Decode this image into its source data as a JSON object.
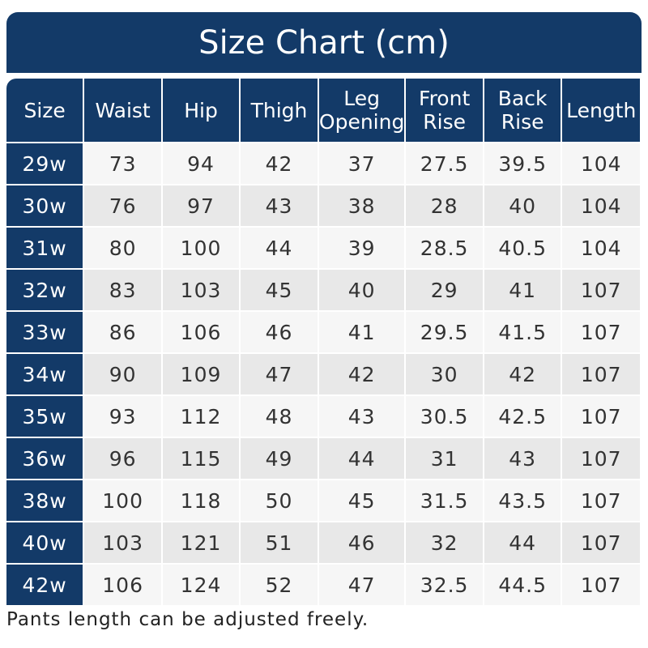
{
  "title": "Size Chart (cm)",
  "colors": {
    "header": "#133a68",
    "row_light": "#f6f6f6",
    "row_dark": "#e8e8e8"
  },
  "headers": [
    "Size",
    "Waist",
    "Hip",
    "Thigh",
    "Leg Opening",
    "Front Rise",
    "Back Rise",
    "Length"
  ],
  "rows": [
    [
      "29w",
      "73",
      "94",
      "42",
      "37",
      "27.5",
      "39.5",
      "104"
    ],
    [
      "30w",
      "76",
      "97",
      "43",
      "38",
      "28",
      "40",
      "104"
    ],
    [
      "31w",
      "80",
      "100",
      "44",
      "39",
      "28.5",
      "40.5",
      "104"
    ],
    [
      "32w",
      "83",
      "103",
      "45",
      "40",
      "29",
      "41",
      "107"
    ],
    [
      "33w",
      "86",
      "106",
      "46",
      "41",
      "29.5",
      "41.5",
      "107"
    ],
    [
      "34w",
      "90",
      "109",
      "47",
      "42",
      "30",
      "42",
      "107"
    ],
    [
      "35w",
      "93",
      "112",
      "48",
      "43",
      "30.5",
      "42.5",
      "107"
    ],
    [
      "36w",
      "96",
      "115",
      "49",
      "44",
      "31",
      "43",
      "107"
    ],
    [
      "38w",
      "100",
      "118",
      "50",
      "45",
      "31.5",
      "43.5",
      "107"
    ],
    [
      "40w",
      "103",
      "121",
      "51",
      "46",
      "32",
      "44",
      "107"
    ],
    [
      "42w",
      "106",
      "124",
      "52",
      "47",
      "32.5",
      "44.5",
      "107"
    ]
  ],
  "note": "Pants length can be adjusted freely."
}
